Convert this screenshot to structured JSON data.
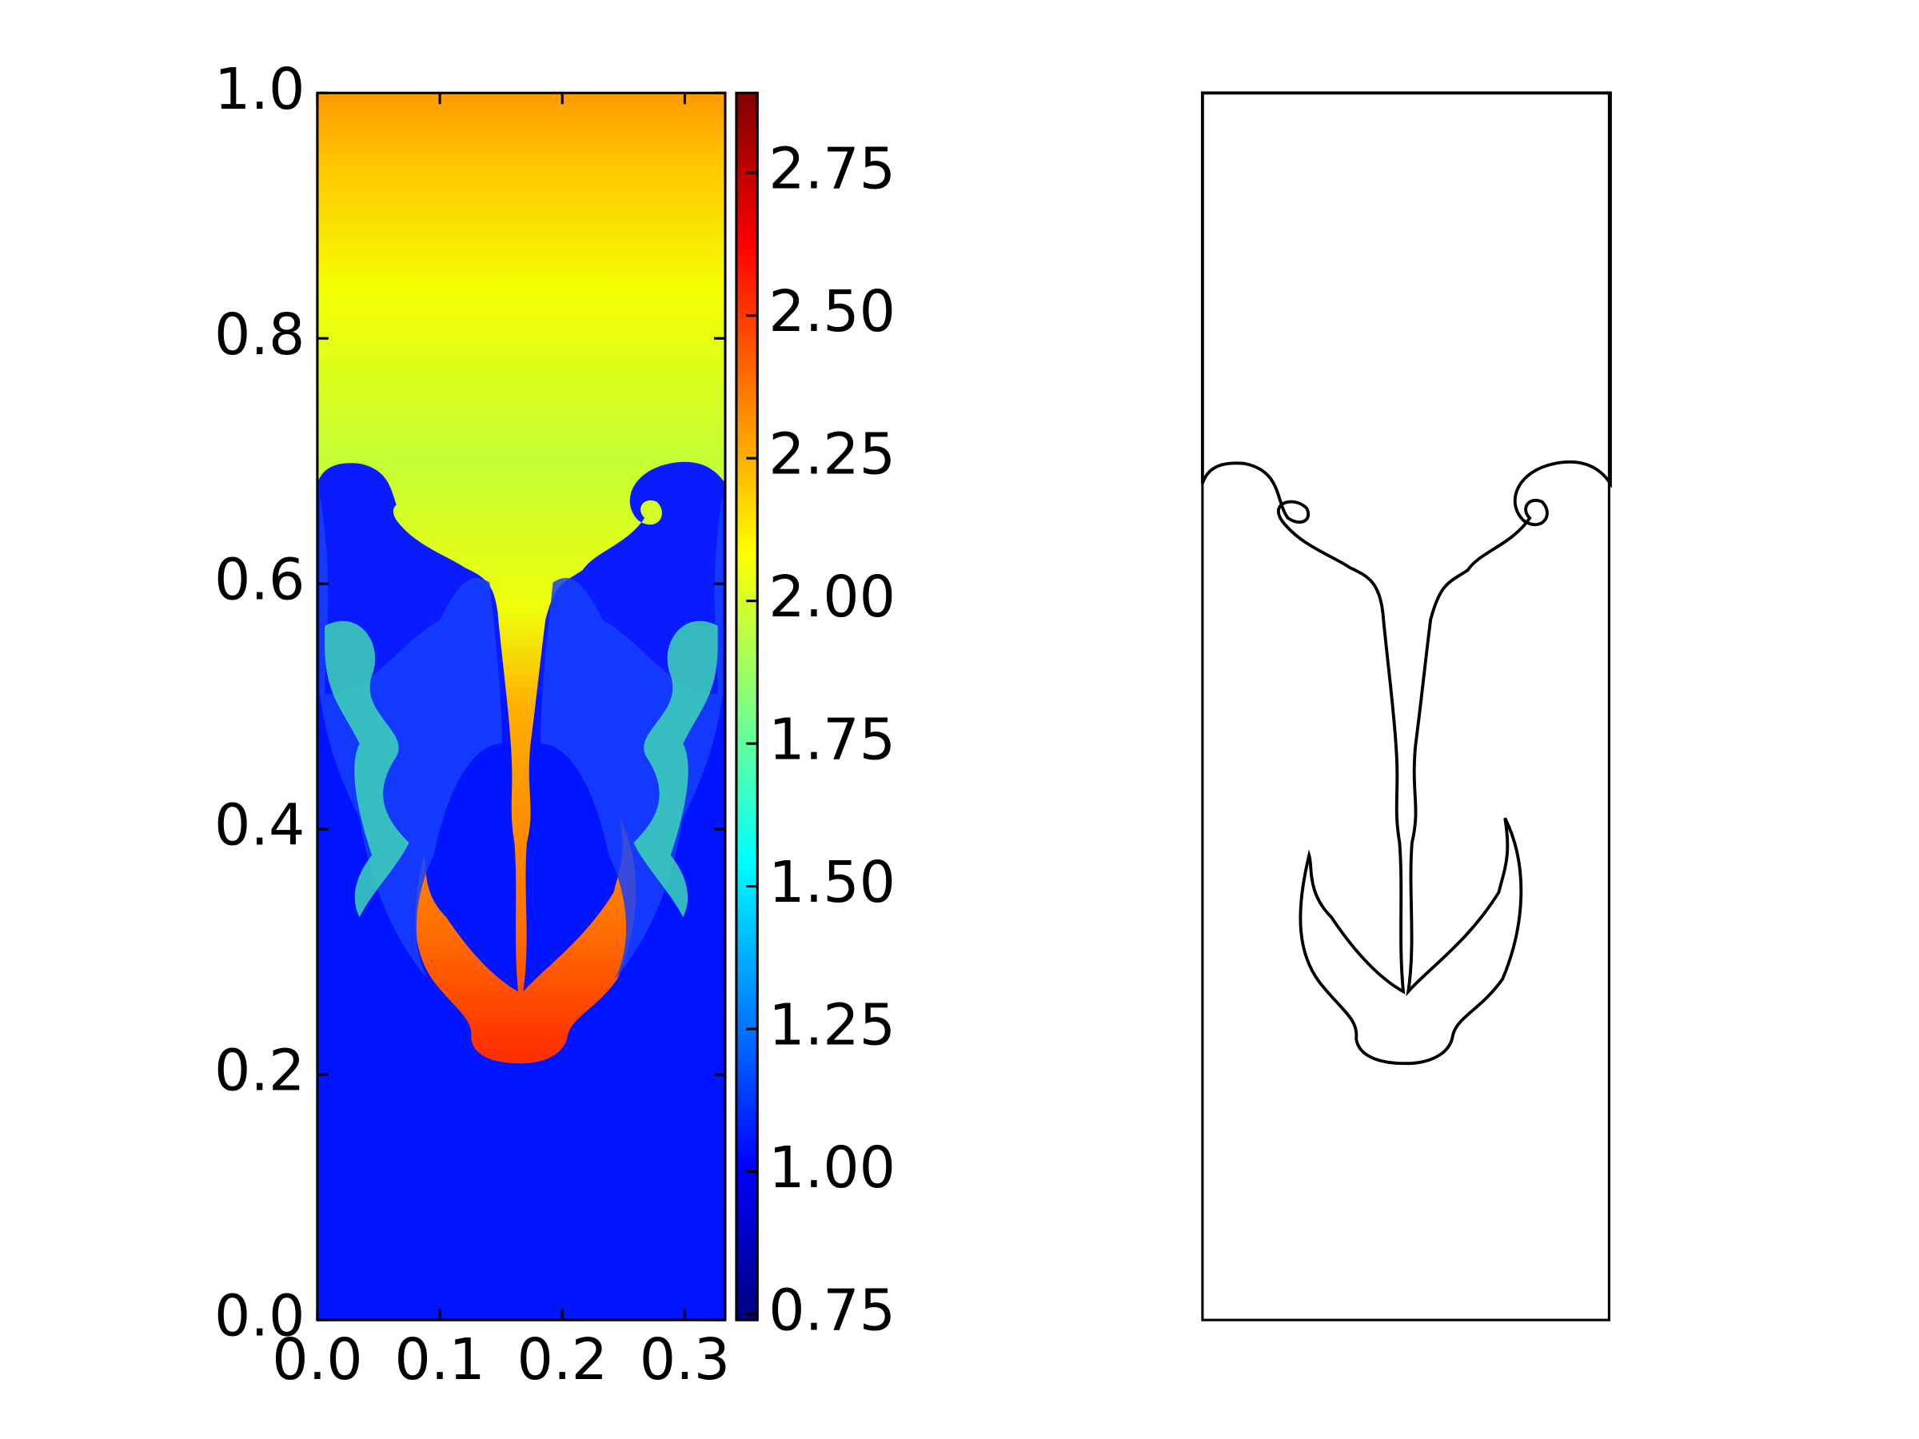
{
  "chart_data": [
    {
      "type": "heatmap",
      "colormap": "jet",
      "xlim": [
        0,
        0.333
      ],
      "ylim": [
        0,
        1
      ],
      "xticks": [
        {
          "value": 0,
          "label": "0.0"
        },
        0.1,
        0.2,
        0.3
      ],
      "yticks": [
        {
          "value": 0,
          "label": "0.0"
        },
        0.2,
        0.4,
        0.6,
        0.8,
        {
          "value": 1,
          "label": "1.0"
        }
      ],
      "clim": [
        0.74,
        2.89
      ],
      "cticks": [
        0.75,
        {
          "value": 1,
          "label": "1.00"
        },
        1.25,
        {
          "value": 1.5,
          "label": "1.50"
        },
        1.75,
        {
          "value": 2,
          "label": "2.00"
        },
        2.25,
        {
          "value": 2.5,
          "label": "2.50"
        },
        2.75
      ]
    },
    {
      "type": "contour"
    }
  ]
}
